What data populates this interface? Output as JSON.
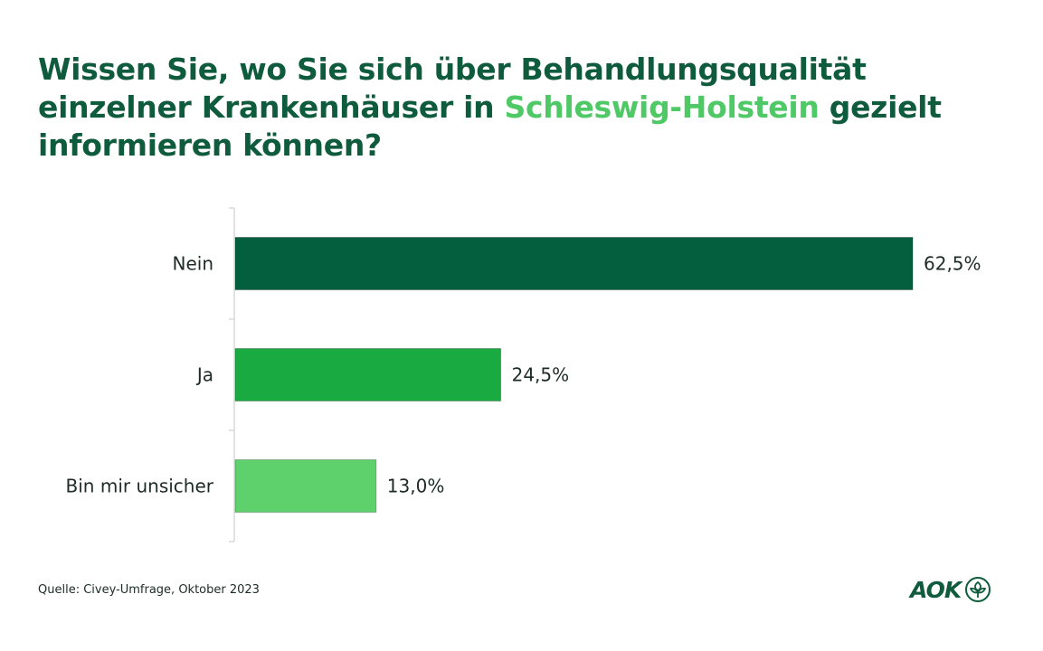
{
  "title": {
    "part1": "Wissen Sie, wo Sie sich über Behandlungsqualität einzelner Krankenhäuser in ",
    "highlight": "Schleswig-Holstein",
    "part2": " gezielt informieren können?"
  },
  "source": "Quelle: Civey-Umfrage,  Oktober 2023",
  "logo": {
    "text": "AOK",
    "icon": "aok-leaf-icon"
  },
  "colors": {
    "title": "#0f5b3d",
    "highlight": "#4fc866",
    "axis": "#d9d9d9",
    "text": "#1d2b25"
  },
  "chart_data": {
    "type": "bar",
    "orientation": "horizontal",
    "categories": [
      "Nein",
      "Ja",
      "Bin mir unsicher"
    ],
    "values": [
      62.5,
      24.5,
      13.0
    ],
    "value_labels": [
      "62,5%",
      "24,5%",
      "13,0%"
    ],
    "colors": [
      "#035f3e",
      "#1aaa42",
      "#5ed16c"
    ],
    "xlim": [
      0,
      62.5
    ],
    "grid": false,
    "legend": "none"
  }
}
